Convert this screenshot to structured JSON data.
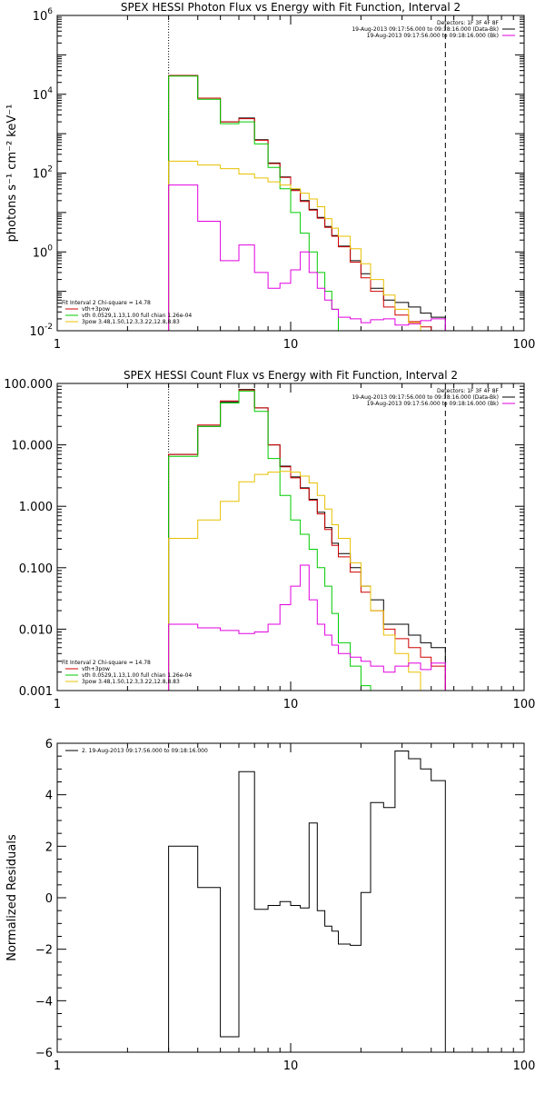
{
  "chart_data": [
    {
      "type": "line",
      "title": "SPEX HESSI Photon Flux vs Energy with Fit Function, Interval 2",
      "ylabel": "photons s⁻¹ cm⁻² keV⁻¹",
      "xlabel": "",
      "xscale": "log",
      "yscale": "log",
      "xlim": [
        1,
        100
      ],
      "ylim": [
        0.01,
        1000000
      ],
      "x_ticks": [
        1,
        10,
        100
      ],
      "x_tick_labels": [
        "1",
        "10",
        "100"
      ],
      "y_ticks": [
        0.01,
        1,
        100,
        10000,
        1000000
      ],
      "y_tick_labels": [
        [
          "10",
          "-2"
        ],
        [
          "10",
          "0"
        ],
        [
          "10",
          "2"
        ],
        [
          "10",
          "4"
        ],
        [
          "10",
          "6"
        ]
      ],
      "vlines": [
        {
          "x": 3.0,
          "style": "dotted"
        },
        {
          "x": 46.0,
          "style": "dashed"
        }
      ],
      "legend_top": {
        "position": "top-right",
        "header": "Detectors: 1F 3F 4F 8F",
        "entries": [
          {
            "text": "19-Aug-2013 09:17:56.000 to 09:18:16.000 (Data-Bk)",
            "color": "#000000"
          },
          {
            "text": "19-Aug-2013 09:17:56.000 to 09:18:16.000 (Bk)",
            "color": "#e000e0"
          }
        ]
      },
      "legend_bottom": {
        "position": "bottom-left",
        "header": "Fit Interval 2   Chi-square = 14.78",
        "entries": [
          {
            "text": "vth+3pow",
            "color": "#d00000"
          },
          {
            "text": "vth 0.0529,1.13,1.00  full chian 1.26e-04",
            "color": "#00cc00"
          },
          {
            "text": "3pow 3.48,1.50,12.3,3.22,12.8,8.83",
            "color": "#e8c000"
          }
        ]
      },
      "edges": [
        3.0,
        4.0,
        5.0,
        6.0,
        7.0,
        8.0,
        9.0,
        10.0,
        11.0,
        12.0,
        13.0,
        14.0,
        15.0,
        16.0,
        18.0,
        20.0,
        22.0,
        25.0,
        28.0,
        32.0,
        36.0,
        40.0,
        46.0
      ],
      "series": [
        {
          "color": "#000000",
          "values": [
            30000,
            8000,
            2000,
            2500,
            700,
            180,
            80,
            38,
            20,
            12,
            7.5,
            4.4,
            2.6,
            1.4,
            0.6,
            0.28,
            0.12,
            0.06,
            0.052,
            0.04,
            0.028,
            0.022
          ]
        },
        {
          "color": "#d00000",
          "values": [
            30000,
            8000,
            2000,
            2400,
            680,
            175,
            78,
            36,
            19,
            11.5,
            7.2,
            4.2,
            2.5,
            1.35,
            0.55,
            0.22,
            0.1,
            0.04,
            0.025,
            0.017,
            0.0125,
            0.009
          ]
        },
        {
          "color": "#00cc00",
          "values": [
            29000,
            7500,
            1800,
            2000,
            550,
            140,
            40,
            10,
            3,
            1,
            0.3,
            0.1,
            0.035,
            0.01,
            0.0035
          ]
        },
        {
          "color": "#e8c000",
          "values": [
            200,
            160,
            130,
            95,
            75,
            60,
            50,
            40,
            31,
            22,
            14,
            7,
            4,
            2.5,
            1.2,
            0.5,
            0.2,
            0.08,
            0.035,
            0.016,
            0.007
          ]
        },
        {
          "color": "#e000e0",
          "values": [
            50,
            6,
            0.6,
            1.5,
            0.3,
            0.12,
            0.16,
            0.35,
            1.0,
            0.3,
            0.12,
            0.06,
            0.035,
            0.022,
            0.02,
            0.016,
            0.019,
            0.02,
            0.014,
            0.015,
            0.018,
            0.02
          ]
        }
      ]
    },
    {
      "type": "line",
      "title": "SPEX HESSI Count Flux vs Energy with Fit Function, Interval 2",
      "ylabel": "",
      "xlabel": "",
      "xscale": "log",
      "yscale": "log",
      "xlim": [
        1,
        100
      ],
      "ylim": [
        0.001,
        100
      ],
      "x_ticks": [
        1,
        10,
        100
      ],
      "x_tick_labels": [
        "1",
        "10",
        "100"
      ],
      "y_ticks": [
        0.001,
        0.01,
        0.1,
        1,
        10,
        100
      ],
      "y_tick_labels": [
        [
          "0.001"
        ],
        [
          "0.010"
        ],
        [
          "0.100"
        ],
        [
          "1.000"
        ],
        [
          "10.000"
        ],
        [
          "100.000"
        ]
      ],
      "vlines": [
        {
          "x": 3.0,
          "style": "dotted"
        },
        {
          "x": 46.0,
          "style": "dashed"
        }
      ],
      "legend_top": {
        "position": "top-right",
        "header": "Detectors: 1F 3F 4F 8F",
        "entries": [
          {
            "text": "19-Aug-2013 09:17:56.000 to 09:18:16.000 (Data-Bk)",
            "color": "#000000"
          },
          {
            "text": "19-Aug-2013 09:17:56.000 to 09:18:16.000 (Bk)",
            "color": "#e000e0"
          }
        ]
      },
      "legend_bottom": {
        "position": "bottom-left",
        "header": "Fit Interval 2   Chi-square = 14.78",
        "entries": [
          {
            "text": "vth+3pow",
            "color": "#d00000"
          },
          {
            "text": "vth 0.0529,1.13,1.00  full chian 1.26e-04",
            "color": "#00cc00"
          },
          {
            "text": "3pow 3.48,1.50,12.3,3.22,12.8,8.83",
            "color": "#e8c000"
          }
        ]
      },
      "edges": [
        3.0,
        4.0,
        5.0,
        6.0,
        7.0,
        8.0,
        9.0,
        10.0,
        11.0,
        12.0,
        13.0,
        14.0,
        15.0,
        16.0,
        18.0,
        20.0,
        22.0,
        25.0,
        28.0,
        32.0,
        36.0,
        40.0,
        46.0
      ],
      "series": [
        {
          "color": "#000000",
          "values": [
            7,
            20,
            50,
            80,
            40,
            10,
            4.5,
            3.0,
            2.0,
            1.3,
            0.8,
            0.45,
            0.25,
            0.17,
            0.1,
            0.05,
            0.03,
            0.012,
            0.012,
            0.008,
            0.006,
            0.005
          ]
        },
        {
          "color": "#d00000",
          "values": [
            7,
            21,
            52,
            78,
            40,
            10,
            4.4,
            2.9,
            1.95,
            1.25,
            0.75,
            0.42,
            0.23,
            0.15,
            0.085,
            0.04,
            0.02,
            0.01,
            0.007,
            0.005,
            0.0035,
            0.0025
          ]
        },
        {
          "color": "#00cc00",
          "values": [
            6.5,
            20,
            48,
            75,
            35,
            6,
            1.5,
            0.6,
            0.35,
            0.2,
            0.1,
            0.05,
            0.018,
            0.006,
            0.0025,
            0.0012
          ]
        },
        {
          "color": "#e8c000",
          "values": [
            0.3,
            0.6,
            1.2,
            2.5,
            3.3,
            3.6,
            3.7,
            3.6,
            3.1,
            2.4,
            1.5,
            0.9,
            0.5,
            0.3,
            0.12,
            0.05,
            0.02,
            0.008,
            0.004,
            0.002,
            0.001
          ]
        },
        {
          "color": "#e000e0",
          "values": [
            0.012,
            0.0105,
            0.0095,
            0.0085,
            0.009,
            0.012,
            0.025,
            0.05,
            0.11,
            0.03,
            0.012,
            0.008,
            0.0055,
            0.004,
            0.0035,
            0.003,
            0.0025,
            0.002,
            0.0025,
            0.0028,
            0.0022,
            0.0028
          ]
        }
      ]
    },
    {
      "type": "line",
      "title": "",
      "ylabel": "Normalized Residuals",
      "xlabel": "",
      "xscale": "log",
      "yscale": "linear",
      "xlim": [
        1,
        100
      ],
      "ylim": [
        -6,
        6
      ],
      "x_ticks": [
        1,
        10,
        100
      ],
      "x_tick_labels": [
        "1",
        "10",
        "100"
      ],
      "y_ticks": [
        -6,
        -4,
        -2,
        0,
        2,
        4,
        6
      ],
      "y_tick_labels": [
        [
          "−6"
        ],
        [
          "−4"
        ],
        [
          "−2"
        ],
        [
          "0"
        ],
        [
          "2"
        ],
        [
          "4"
        ],
        [
          "6"
        ]
      ],
      "vlines": [],
      "legend_top": {
        "position": "top-left",
        "header": "",
        "entries": [
          {
            "text": "2. 19-Aug-2013 09:17:56.000 to 09:18:16.000",
            "color": "#000000"
          }
        ]
      },
      "edges": [
        3.0,
        4.0,
        5.0,
        6.0,
        7.0,
        8.0,
        9.0,
        10.0,
        11.0,
        12.0,
        13.0,
        14.0,
        15.0,
        16.0,
        18.0,
        20.0,
        22.0,
        25.0,
        28.0,
        32.0,
        36.0,
        40.0,
        46.0
      ],
      "series": [
        {
          "color": "#000000",
          "values": [
            2.0,
            0.4,
            -5.4,
            4.9,
            -0.45,
            -0.3,
            -0.15,
            -0.3,
            -0.4,
            2.9,
            -0.5,
            -1.1,
            -1.3,
            -1.8,
            -1.85,
            0.2,
            3.7,
            3.5,
            5.7,
            5.4,
            5.0,
            4.55
          ]
        }
      ]
    }
  ]
}
